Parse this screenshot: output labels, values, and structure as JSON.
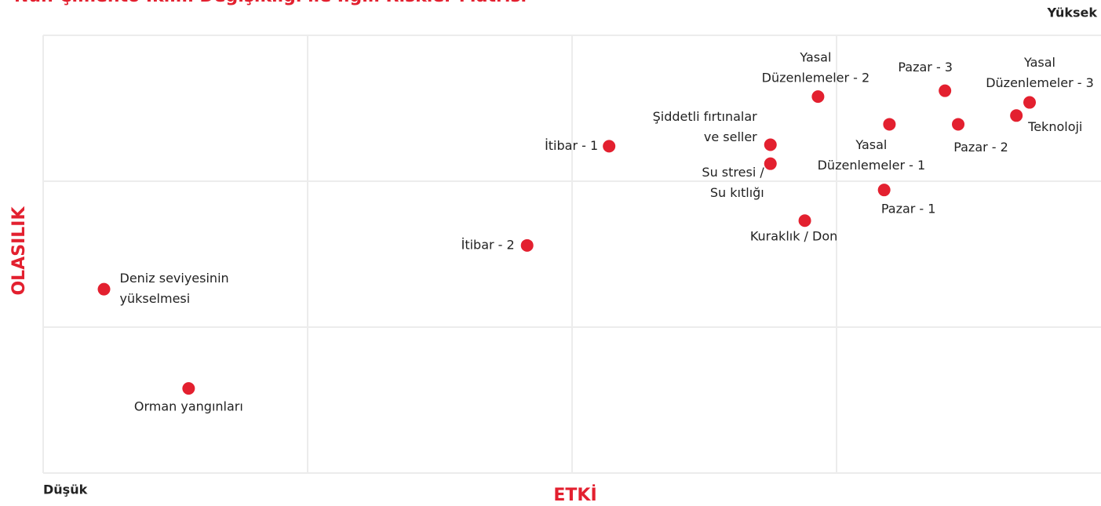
{
  "chart_data": {
    "type": "scatter",
    "title": "Nuh Çimento İklim Değişikliği ile İlgili Riskler Matrisi",
    "x_label": "ETKİ",
    "y_label": "OLASILIK",
    "x_low": "Düşük",
    "y_high": "Yüksek",
    "xlim": [
      0,
      4
    ],
    "ylim": [
      0,
      3
    ],
    "xticks": [
      1,
      2,
      3
    ],
    "yticks": [
      1,
      2
    ],
    "grid": true,
    "color": "#e3202f",
    "labels": [
      [
        "Deniz seviyesinin",
        "yükselmesi"
      ],
      [
        "Orman yangınları"
      ],
      [
        "İtibar - 2"
      ],
      [
        "İtibar - 1"
      ],
      [
        "Şiddetli fırtınalar",
        "ve seller"
      ],
      [
        "Su stresi /",
        "Su kıtlığı"
      ],
      [
        "Kuraklık / Don"
      ],
      [
        "Yasal",
        "Düzenlemeler - 2"
      ],
      [
        "Yasal",
        "Düzenlemeler - 1"
      ],
      [
        "Pazar - 1"
      ],
      [
        "Pazar - 3"
      ],
      [
        "Pazar - 2"
      ],
      [
        "Yasal",
        "Düzenlemeler - 3"
      ],
      [
        "Teknoloji"
      ]
    ],
    "x": [
      0.23,
      0.55,
      1.83,
      2.14,
      2.75,
      2.75,
      2.88,
      2.93,
      3.2,
      3.18,
      3.41,
      3.46,
      3.73,
      3.68
    ],
    "y": [
      1.26,
      0.58,
      1.56,
      2.24,
      2.25,
      2.12,
      1.73,
      2.58,
      2.39,
      1.94,
      2.62,
      2.39,
      2.54,
      2.45
    ]
  }
}
